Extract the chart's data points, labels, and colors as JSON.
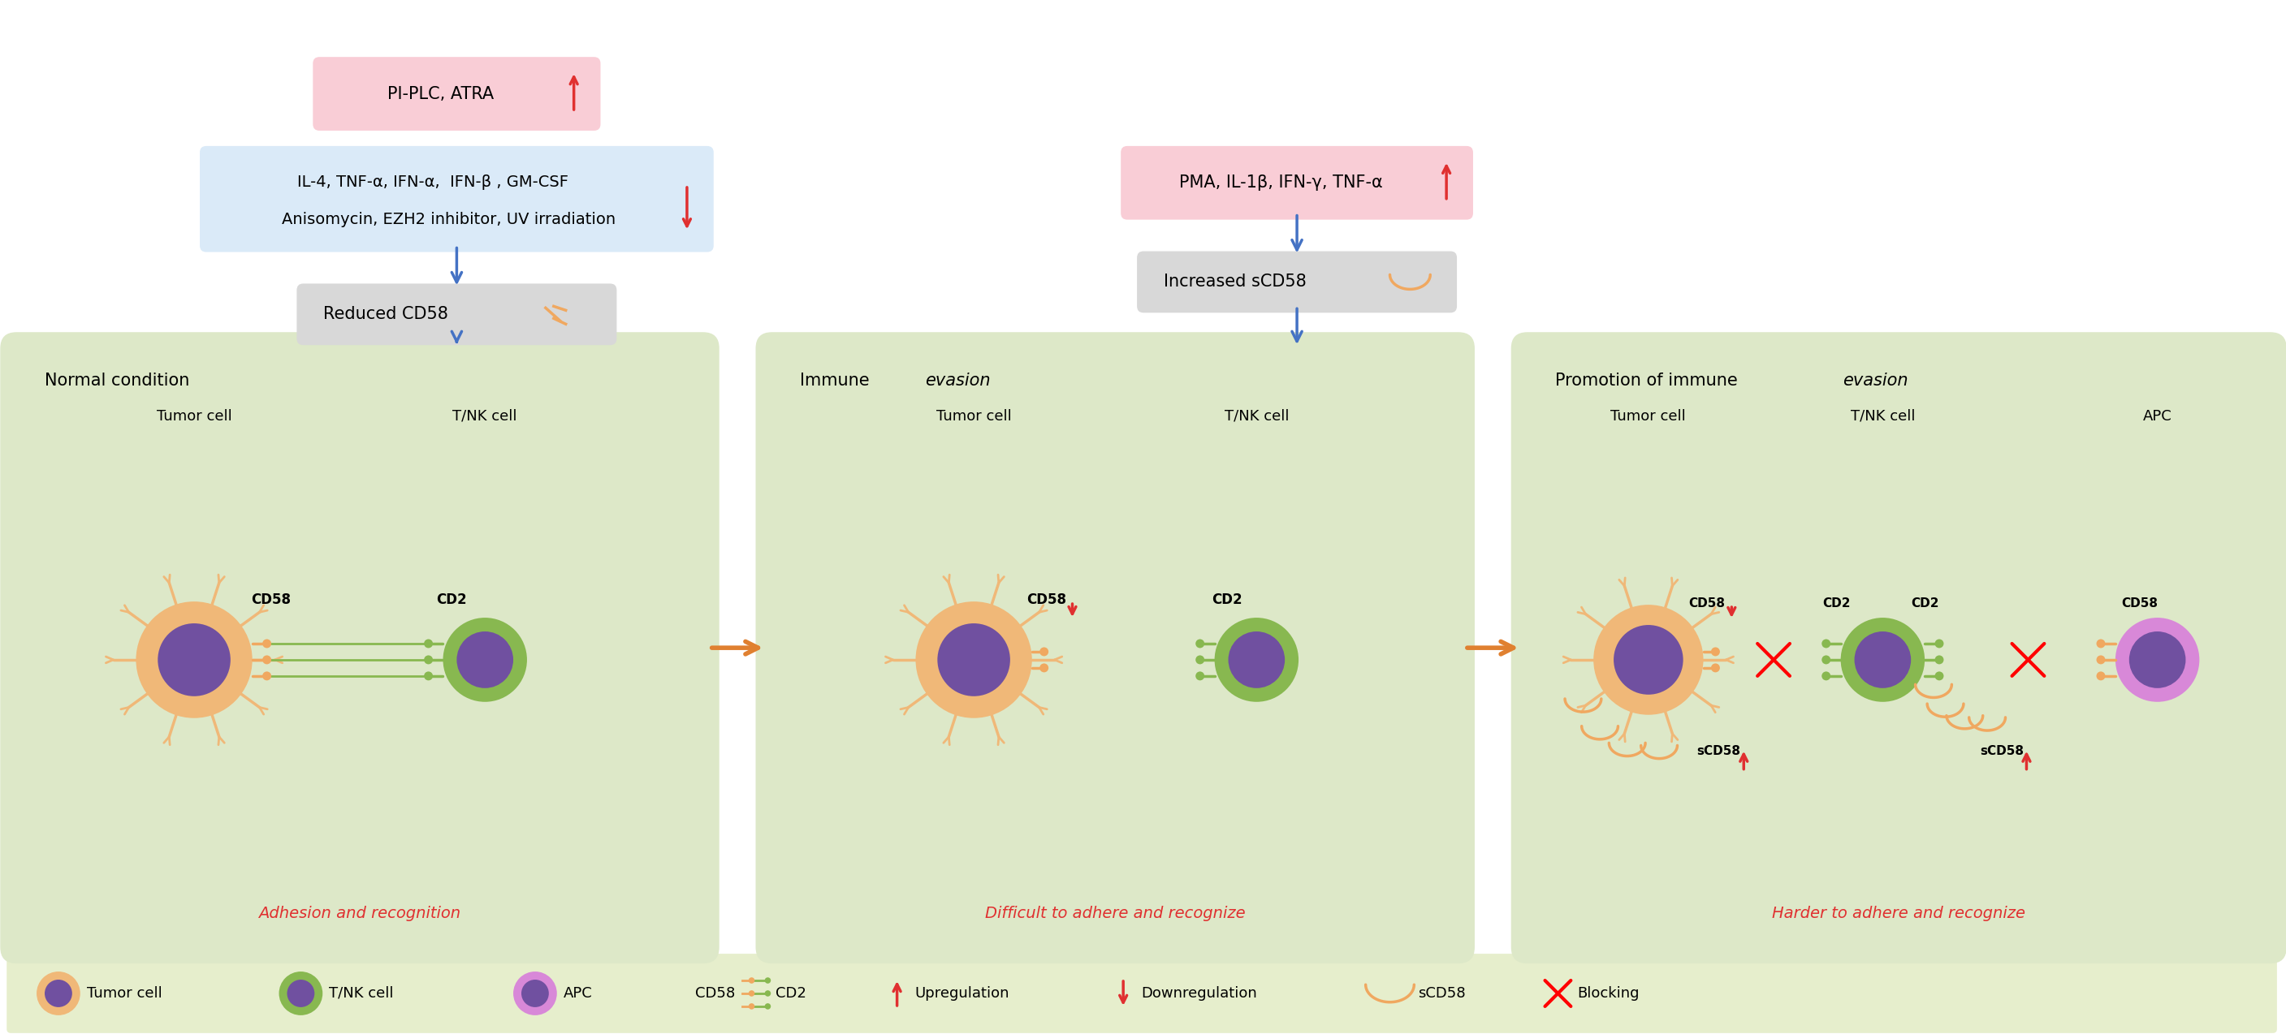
{
  "bg_color": "#ffffff",
  "legend_bg": "#e6eecc",
  "pink_box_bg": "#f9cdd6",
  "blue_box_bg": "#daeaf8",
  "gray_box_bg": "#d8d8d8",
  "green_panel_bg": "#dde8c8",
  "arrow_blue": "#4472c4",
  "arrow_orange": "#e08030",
  "red_color": "#e03030",
  "tumor_color": "#f0b878",
  "tumor_spike_color": "#f0b878",
  "tumor_inner": "#7050a0",
  "tnk_outer": "#88b850",
  "tnk_inner": "#7050a0",
  "apc_outer": "#d888d8",
  "apc_inner": "#7050a0",
  "cd58_color": "#f0a860",
  "cd2_color": "#88b850",
  "panel1_title_normal": "Normal condition",
  "panel2_title_immune": "Immune ",
  "panel2_title_evasion": "evasion",
  "panel3_title_promo": "Promotion of immune ",
  "panel3_title_evasion": "evasion",
  "panel1_bottom": "Adhesion and recognition",
  "panel2_bottom": "Difficult to adhere and recognize",
  "panel3_bottom": "Harder to adhere and recognize"
}
